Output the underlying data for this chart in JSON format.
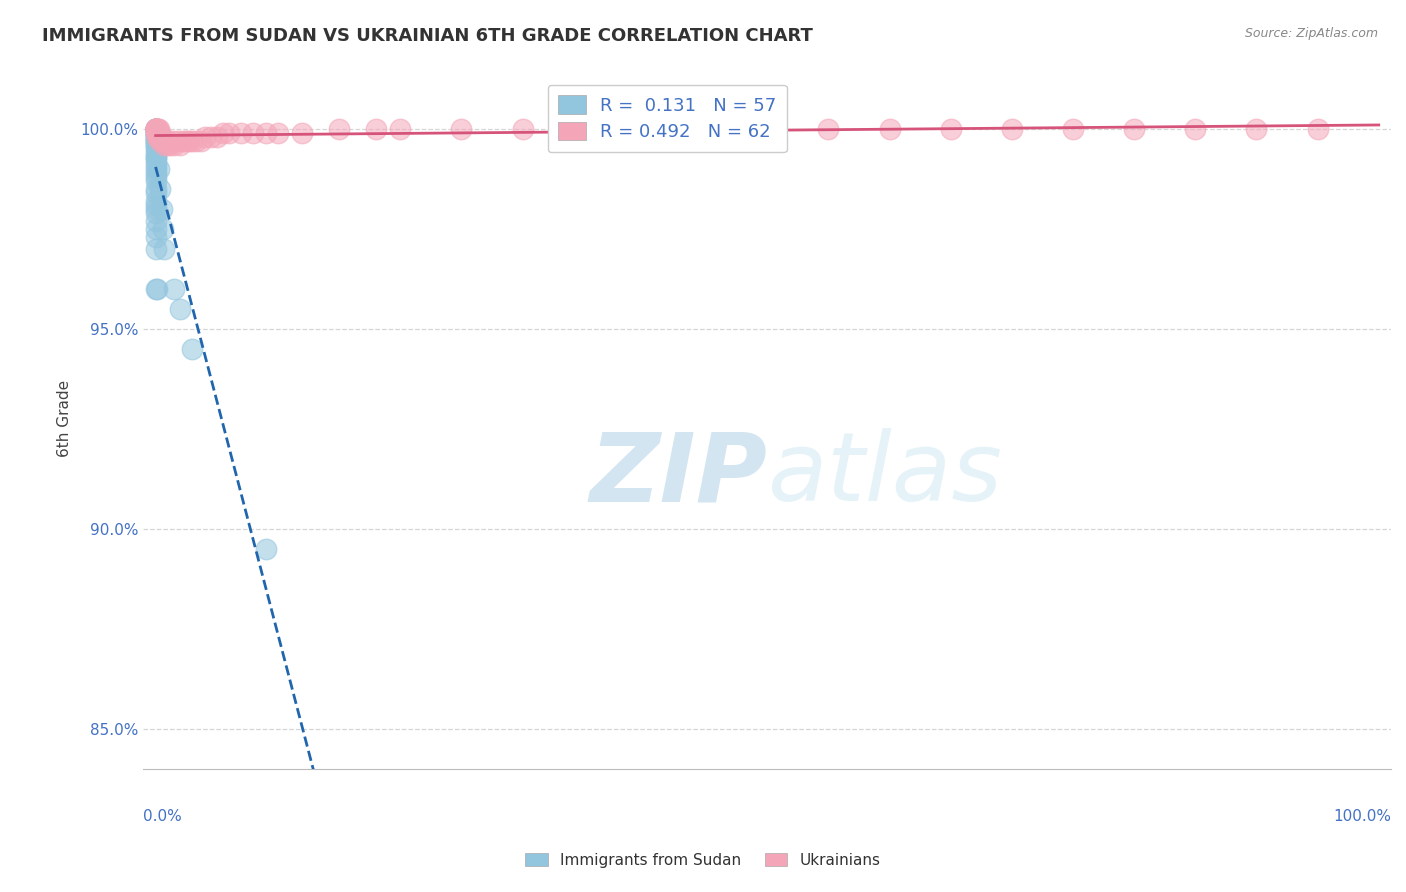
{
  "title": "IMMIGRANTS FROM SUDAN VS UKRAINIAN 6TH GRADE CORRELATION CHART",
  "source": "Source: ZipAtlas.com",
  "ylabel": "6th Grade",
  "legend_blue_r": "0.131",
  "legend_blue_n": "57",
  "legend_pink_r": "0.492",
  "legend_pink_n": "62",
  "legend_label_blue": "Immigrants from Sudan",
  "legend_label_pink": "Ukrainians",
  "blue_color": "#92c5de",
  "pink_color": "#f4a6b8",
  "blue_line_color": "#2166ac",
  "pink_line_color": "#d6537a",
  "text_color": "#4472c4",
  "watermark_color": "#cce4f5",
  "blue_x": [
    0.0,
    0.0,
    0.0,
    0.0,
    0.0,
    0.0,
    0.0,
    0.0,
    0.0,
    0.0,
    0.0,
    0.0,
    0.0,
    0.0,
    0.0,
    0.0,
    0.0,
    0.0,
    0.0,
    0.0,
    0.0,
    0.0,
    0.0,
    0.0,
    0.0,
    0.0,
    0.0,
    0.0,
    0.0,
    0.0,
    0.0,
    0.0,
    0.0,
    0.0,
    0.0,
    0.0,
    0.0,
    0.0,
    0.0,
    0.0,
    0.0,
    0.0,
    0.1,
    0.1,
    0.1,
    0.1,
    0.2,
    0.2,
    0.3,
    0.4,
    0.5,
    0.6,
    0.7,
    1.5,
    2.0,
    3.0,
    9.0
  ],
  "blue_y": [
    100.0,
    100.0,
    100.0,
    100.0,
    100.0,
    100.0,
    100.0,
    100.0,
    100.0,
    99.9,
    99.9,
    99.9,
    99.9,
    99.8,
    99.8,
    99.8,
    99.7,
    99.7,
    99.7,
    99.6,
    99.6,
    99.5,
    99.4,
    99.3,
    99.3,
    99.2,
    99.1,
    99.0,
    98.9,
    98.8,
    98.7,
    98.5,
    98.4,
    98.2,
    98.1,
    98.0,
    97.9,
    97.7,
    97.5,
    97.3,
    97.0,
    96.0,
    99.9,
    99.8,
    99.7,
    96.0,
    99.8,
    99.7,
    99.0,
    98.5,
    98.0,
    97.5,
    97.0,
    96.0,
    95.5,
    94.5,
    89.5
  ],
  "pink_x": [
    0.0,
    0.0,
    0.0,
    0.0,
    0.0,
    0.0,
    0.0,
    0.0,
    0.1,
    0.1,
    0.1,
    0.2,
    0.2,
    0.3,
    0.3,
    0.4,
    0.4,
    0.5,
    0.6,
    0.7,
    0.8,
    0.9,
    1.0,
    1.2,
    1.4,
    1.5,
    1.8,
    2.0,
    2.2,
    2.5,
    2.7,
    3.0,
    3.3,
    3.7,
    4.0,
    4.5,
    5.0,
    5.5,
    6.0,
    7.0,
    8.0,
    9.0,
    10.0,
    12.0,
    15.0,
    18.0,
    20.0,
    25.0,
    30.0,
    35.0,
    40.0,
    45.0,
    50.0,
    55.0,
    60.0,
    65.0,
    70.0,
    75.0,
    80.0,
    85.0,
    90.0,
    95.0
  ],
  "pink_y": [
    100.0,
    100.0,
    100.0,
    100.0,
    100.0,
    100.0,
    100.0,
    99.9,
    100.0,
    99.9,
    99.8,
    100.0,
    99.8,
    100.0,
    99.8,
    99.9,
    99.7,
    99.8,
    99.7,
    99.6,
    99.7,
    99.6,
    99.7,
    99.6,
    99.7,
    99.6,
    99.7,
    99.6,
    99.7,
    99.7,
    99.7,
    99.7,
    99.7,
    99.7,
    99.8,
    99.8,
    99.8,
    99.9,
    99.9,
    99.9,
    99.9,
    99.9,
    99.9,
    99.9,
    100.0,
    100.0,
    100.0,
    100.0,
    100.0,
    100.0,
    100.0,
    100.0,
    100.0,
    100.0,
    100.0,
    100.0,
    100.0,
    100.0,
    100.0,
    100.0,
    100.0,
    100.0
  ]
}
